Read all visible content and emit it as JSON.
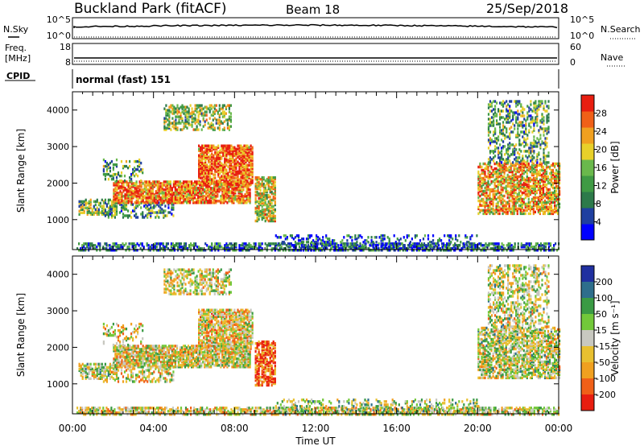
{
  "header": {
    "station": "Buckland Park (fitACF)",
    "beam": "Beam 18",
    "date": "25/Sep/2018"
  },
  "strips": {
    "nsky": {
      "label": "N.Sky",
      "left_ticks": [
        "10^5",
        "10^0"
      ],
      "right_ticks": [
        "10^5",
        "10^0"
      ],
      "right_label": "N.Search"
    },
    "freq": {
      "label_top": "Freq.",
      "label_bottom": "[MHz]",
      "left_ticks": [
        "18",
        "8"
      ],
      "right_ticks": [
        "60",
        "0"
      ],
      "right_label": "Nave"
    },
    "cpid": {
      "label": "CPID",
      "text": "normal (fast) 151"
    }
  },
  "colors": {
    "power_scale": [
      "#0000ff",
      "#1f3fa0",
      "#2d7a4a",
      "#3f9a44",
      "#6ab84c",
      "#e8d02a",
      "#f0a020",
      "#f06018",
      "#e81e10"
    ],
    "velocity_scale": [
      "#2030a0",
      "#2e6e8c",
      "#3a9a44",
      "#72c83a",
      "#c8c8c0",
      "#e8c030",
      "#f0a020",
      "#f06018",
      "#e81e10"
    ]
  },
  "chart_data": [
    {
      "type": "heatmap",
      "name_key": "power",
      "xlabel": "",
      "ylabel": "Slant Range [km]",
      "y_ticks": [
        "1000",
        "2000",
        "3000",
        "4000"
      ],
      "x_ticks": [
        "00:00",
        "04:00",
        "08:00",
        "12:00",
        "16:00",
        "20:00",
        "00:00"
      ],
      "colorbar": {
        "label": "Power [dB]",
        "ticks": [
          "4",
          "8",
          "12",
          "16",
          "20",
          "24",
          "28"
        ],
        "range": [
          0,
          30
        ]
      },
      "x_range_hours": [
        0,
        24
      ],
      "y_range_km": [
        180,
        4500
      ]
    },
    {
      "type": "heatmap",
      "name_key": "velocity",
      "xlabel": "Time UT",
      "ylabel": "Slant Range [km]",
      "y_ticks": [
        "1000",
        "2000",
        "3000",
        "4000"
      ],
      "x_ticks": [
        "00:00",
        "04:00",
        "08:00",
        "12:00",
        "16:00",
        "20:00",
        "00:00"
      ],
      "colorbar": {
        "label": "Velocity [m s⁻¹]",
        "ticks": [
          "200",
          "100",
          "50",
          "15",
          "-15",
          "-50",
          "-100",
          "-200"
        ]
      },
      "x_range_hours": [
        0,
        24
      ],
      "y_range_km": [
        180,
        4500
      ]
    }
  ]
}
